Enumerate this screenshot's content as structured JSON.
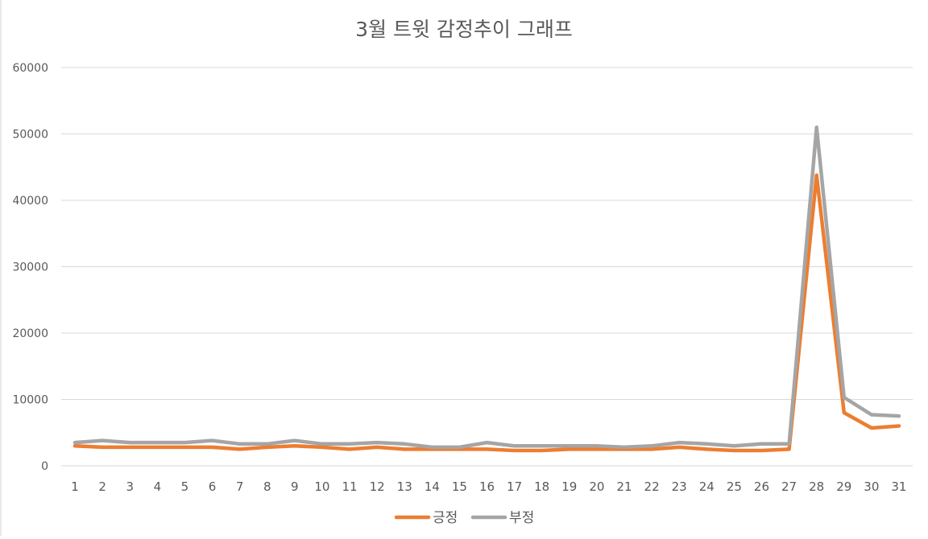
{
  "chart_data": {
    "type": "line",
    "title": "3월 트윗 감정추이 그래프",
    "xlabel": "",
    "ylabel": "",
    "categories": [
      "1",
      "2",
      "3",
      "4",
      "5",
      "6",
      "7",
      "8",
      "9",
      "10",
      "11",
      "12",
      "13",
      "14",
      "15",
      "16",
      "17",
      "18",
      "19",
      "20",
      "21",
      "22",
      "23",
      "24",
      "25",
      "26",
      "27",
      "28",
      "29",
      "30",
      "31"
    ],
    "ylim": [
      0,
      60000
    ],
    "yticks": [
      "0",
      "10000",
      "20000",
      "30000",
      "40000",
      "50000",
      "60000"
    ],
    "grid": true,
    "legend_position": "bottom",
    "series": [
      {
        "name": "긍정",
        "color": "#ED7D31",
        "values": [
          3000,
          2800,
          2800,
          2800,
          2800,
          2800,
          2500,
          2800,
          3000,
          2800,
          2500,
          2800,
          2500,
          2500,
          2500,
          2500,
          2300,
          2300,
          2500,
          2500,
          2500,
          2500,
          2800,
          2500,
          2300,
          2300,
          2500,
          43800,
          8000,
          5700,
          6000
        ]
      },
      {
        "name": "부정",
        "color": "#A5A5A5",
        "values": [
          3500,
          3800,
          3500,
          3500,
          3500,
          3800,
          3300,
          3300,
          3800,
          3300,
          3300,
          3500,
          3300,
          2800,
          2800,
          3500,
          3000,
          3000,
          3000,
          3000,
          2800,
          3000,
          3500,
          3300,
          3000,
          3300,
          3300,
          51000,
          10300,
          7700,
          7500
        ]
      }
    ]
  },
  "colors": {
    "grid": "#d9d9d9",
    "axis_text": "#595959",
    "title_text": "#595959"
  }
}
